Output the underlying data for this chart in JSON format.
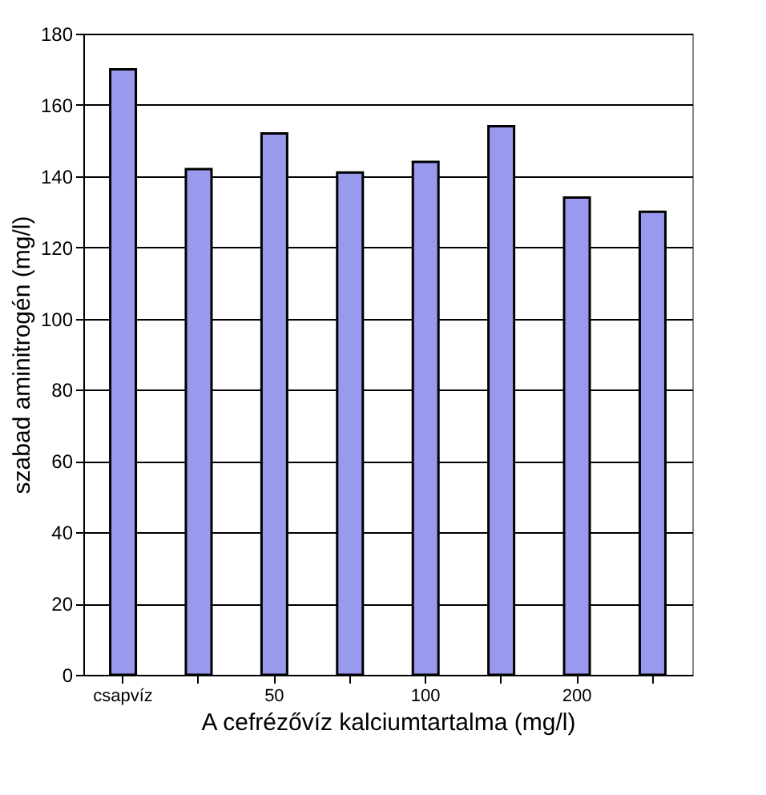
{
  "chart_data": {
    "type": "bar",
    "xlabel": "A cefrézővíz kalciumtartalma (mg/l)",
    "ylabel": "szabad aminitrogén (mg/l)",
    "categories": [
      "csapvíz",
      null,
      "50",
      null,
      "100",
      null,
      "200",
      null
    ],
    "values": [
      170,
      142,
      152,
      141,
      144,
      154,
      134,
      130
    ],
    "color": "#9999ee",
    "ylim": [
      0,
      180
    ],
    "yticks": [
      0,
      20,
      40,
      60,
      80,
      100,
      120,
      140,
      160,
      180
    ],
    "grid": "y"
  }
}
